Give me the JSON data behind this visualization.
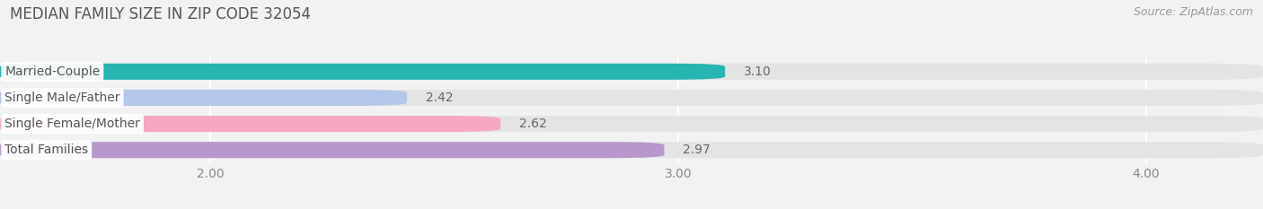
{
  "title": "MEDIAN FAMILY SIZE IN ZIP CODE 32054",
  "source": "Source: ZipAtlas.com",
  "categories": [
    "Married-Couple",
    "Single Male/Father",
    "Single Female/Mother",
    "Total Families"
  ],
  "values": [
    3.1,
    2.42,
    2.62,
    2.97
  ],
  "bar_colors": [
    "#26b5b0",
    "#b3c7ea",
    "#f5a8c0",
    "#b898cc"
  ],
  "xlim_left": 1.55,
  "xlim_right": 4.25,
  "xticks": [
    2.0,
    3.0,
    4.0
  ],
  "xtick_labels": [
    "2.00",
    "3.00",
    "4.00"
  ],
  "background_color": "#f2f2f2",
  "bar_bg_color": "#e4e4e4",
  "title_fontsize": 12,
  "source_fontsize": 9,
  "label_fontsize": 10,
  "value_fontsize": 10,
  "bar_height": 0.62,
  "bar_gap": 0.15
}
